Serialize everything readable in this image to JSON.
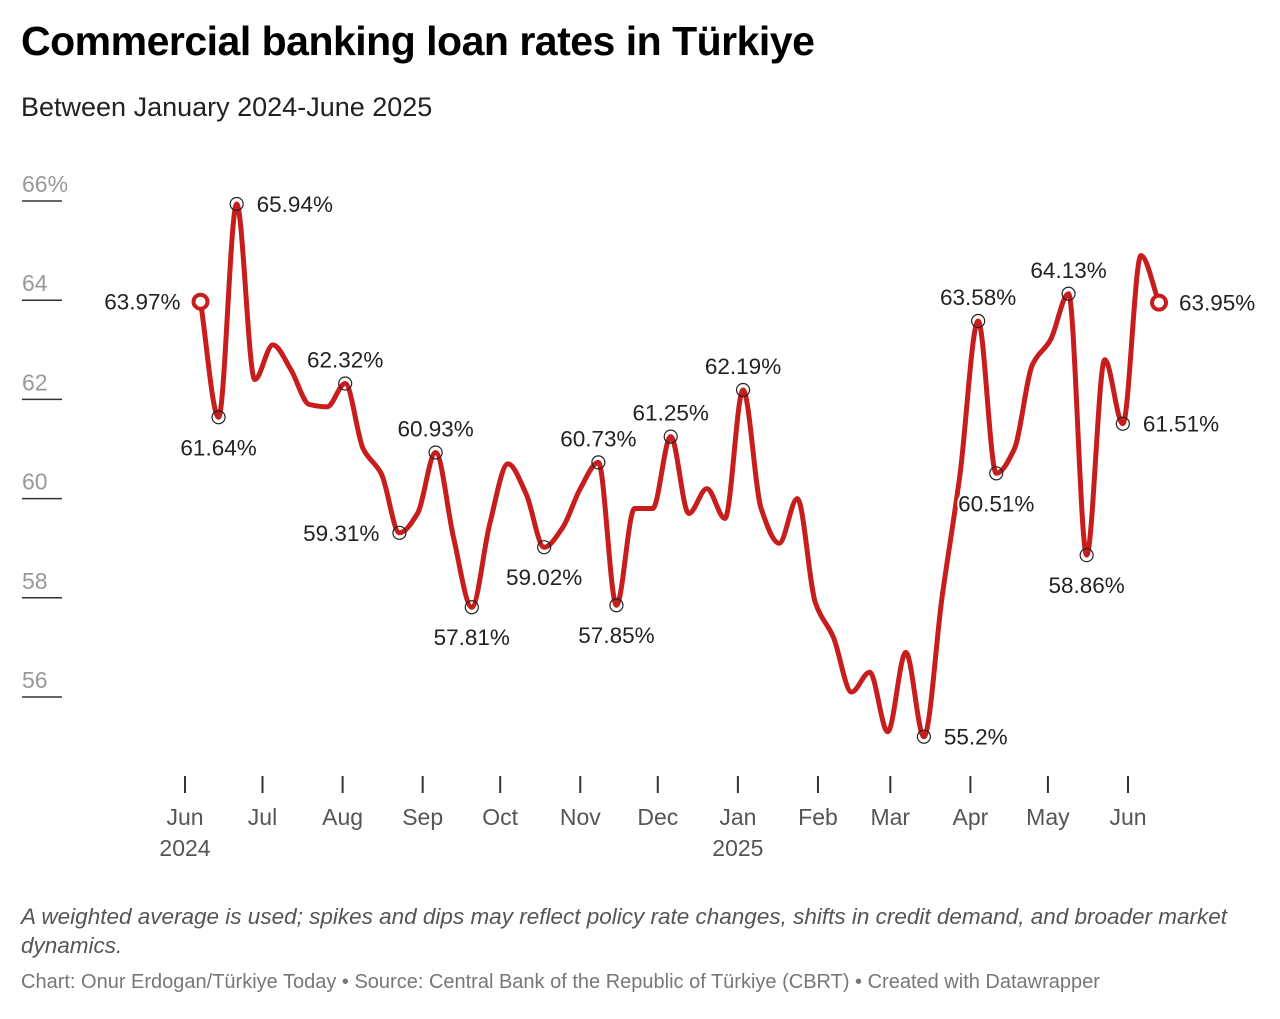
{
  "header": {
    "title": "Commercial banking loan rates in Türkiye",
    "subtitle": "Between January 2024-June 2025"
  },
  "footer": {
    "notes": "A weighted average is used; spikes and dips may reflect policy rate changes, shifts in credit demand, and broader market dynamics.",
    "credit": "Chart: Onur Erdogan/Türkiye Today • Source: Central Bank of the Republic of Türkiye (CBRT) • Created with Datawrapper"
  },
  "chart_data": {
    "type": "line",
    "title": "Commercial banking loan rates in Türkiye",
    "subtitle": "Between January 2024-June 2025",
    "ylim": [
      54.5,
      67
    ],
    "y_ticks": [
      56,
      58,
      60,
      62,
      64,
      66
    ],
    "y_tick_labels": [
      "56",
      "58",
      "60",
      "62",
      "64",
      "66%"
    ],
    "y_grid": false,
    "x_ticks": [
      {
        "date": "2024-06-01",
        "label": "Jun",
        "sublabel": "2024"
      },
      {
        "date": "2024-07-01",
        "label": "Jul",
        "sublabel": ""
      },
      {
        "date": "2024-08-01",
        "label": "Aug",
        "sublabel": ""
      },
      {
        "date": "2024-09-01",
        "label": "Sep",
        "sublabel": ""
      },
      {
        "date": "2024-10-01",
        "label": "Oct",
        "sublabel": ""
      },
      {
        "date": "2024-11-01",
        "label": "Nov",
        "sublabel": ""
      },
      {
        "date": "2024-12-01",
        "label": "Dec",
        "sublabel": ""
      },
      {
        "date": "2025-01-01",
        "label": "Jan",
        "sublabel": "2025"
      },
      {
        "date": "2025-02-01",
        "label": "Feb",
        "sublabel": ""
      },
      {
        "date": "2025-03-01",
        "label": "Mar",
        "sublabel": ""
      },
      {
        "date": "2025-04-01",
        "label": "Apr",
        "sublabel": ""
      },
      {
        "date": "2025-05-01",
        "label": "May",
        "sublabel": ""
      },
      {
        "date": "2025-06-01",
        "label": "Jun",
        "sublabel": ""
      }
    ],
    "line_color": "#c71e1d",
    "series": [
      {
        "points": [
          {
            "x": "2024-06-07",
            "y": 63.97
          },
          {
            "x": "2024-06-14",
            "y": 61.64
          },
          {
            "x": "2024-06-21",
            "y": 65.94
          },
          {
            "x": "2024-06-28",
            "y": 62.4
          },
          {
            "x": "2024-07-05",
            "y": 63.1
          },
          {
            "x": "2024-07-12",
            "y": 62.6
          },
          {
            "x": "2024-07-19",
            "y": 61.9
          },
          {
            "x": "2024-07-26",
            "y": 61.85
          },
          {
            "x": "2024-08-02",
            "y": 62.32
          },
          {
            "x": "2024-08-09",
            "y": 61.0
          },
          {
            "x": "2024-08-16",
            "y": 60.5
          },
          {
            "x": "2024-08-23",
            "y": 59.31
          },
          {
            "x": "2024-08-30",
            "y": 59.7
          },
          {
            "x": "2024-09-06",
            "y": 60.93
          },
          {
            "x": "2024-09-13",
            "y": 59.2
          },
          {
            "x": "2024-09-20",
            "y": 57.81
          },
          {
            "x": "2024-09-27",
            "y": 59.5
          },
          {
            "x": "2024-10-04",
            "y": 60.7
          },
          {
            "x": "2024-10-11",
            "y": 60.1
          },
          {
            "x": "2024-10-18",
            "y": 59.02
          },
          {
            "x": "2024-10-25",
            "y": 59.4
          },
          {
            "x": "2024-11-01",
            "y": 60.2
          },
          {
            "x": "2024-11-08",
            "y": 60.73
          },
          {
            "x": "2024-11-15",
            "y": 57.85
          },
          {
            "x": "2024-11-22",
            "y": 59.8
          },
          {
            "x": "2024-11-29",
            "y": 59.8
          },
          {
            "x": "2024-12-06",
            "y": 61.25
          },
          {
            "x": "2024-12-13",
            "y": 59.7
          },
          {
            "x": "2024-12-20",
            "y": 60.2
          },
          {
            "x": "2024-12-27",
            "y": 59.6
          },
          {
            "x": "2025-01-03",
            "y": 62.19
          },
          {
            "x": "2025-01-10",
            "y": 59.8
          },
          {
            "x": "2025-01-17",
            "y": 59.1
          },
          {
            "x": "2025-01-24",
            "y": 60.0
          },
          {
            "x": "2025-01-31",
            "y": 57.9
          },
          {
            "x": "2025-02-07",
            "y": 57.2
          },
          {
            "x": "2025-02-14",
            "y": 56.1
          },
          {
            "x": "2025-02-21",
            "y": 56.5
          },
          {
            "x": "2025-02-28",
            "y": 55.3
          },
          {
            "x": "2025-03-07",
            "y": 56.9
          },
          {
            "x": "2025-03-14",
            "y": 55.2
          },
          {
            "x": "2025-03-21",
            "y": 58.0
          },
          {
            "x": "2025-03-28",
            "y": 60.5
          },
          {
            "x": "2025-04-04",
            "y": 63.58
          },
          {
            "x": "2025-04-11",
            "y": 60.51
          },
          {
            "x": "2025-04-18",
            "y": 61.0
          },
          {
            "x": "2025-04-25",
            "y": 62.7
          },
          {
            "x": "2025-05-02",
            "y": 63.2
          },
          {
            "x": "2025-05-09",
            "y": 64.13
          },
          {
            "x": "2025-05-16",
            "y": 58.86
          },
          {
            "x": "2025-05-23",
            "y": 62.8
          },
          {
            "x": "2025-05-30",
            "y": 61.51
          },
          {
            "x": "2025-06-06",
            "y": 64.9
          },
          {
            "x": "2025-06-13",
            "y": 63.95
          }
        ]
      }
    ],
    "annotations": [
      {
        "x": "2024-06-07",
        "y": 63.97,
        "text": "63.97%",
        "anchor": "left",
        "endpoint": true
      },
      {
        "x": "2024-06-14",
        "y": 61.64,
        "text": "61.64%",
        "anchor": "below"
      },
      {
        "x": "2024-06-21",
        "y": 65.94,
        "text": "65.94%",
        "anchor": "right"
      },
      {
        "x": "2024-08-02",
        "y": 62.32,
        "text": "62.32%",
        "anchor": "above"
      },
      {
        "x": "2024-08-23",
        "y": 59.31,
        "text": "59.31%",
        "anchor": "left"
      },
      {
        "x": "2024-09-06",
        "y": 60.93,
        "text": "60.93%",
        "anchor": "above"
      },
      {
        "x": "2024-09-20",
        "y": 57.81,
        "text": "57.81%",
        "anchor": "below"
      },
      {
        "x": "2024-10-18",
        "y": 59.02,
        "text": "59.02%",
        "anchor": "below"
      },
      {
        "x": "2024-11-08",
        "y": 60.73,
        "text": "60.73%",
        "anchor": "above"
      },
      {
        "x": "2024-11-15",
        "y": 57.85,
        "text": "57.85%",
        "anchor": "below"
      },
      {
        "x": "2024-12-06",
        "y": 61.25,
        "text": "61.25%",
        "anchor": "above"
      },
      {
        "x": "2025-01-03",
        "y": 62.19,
        "text": "62.19%",
        "anchor": "above"
      },
      {
        "x": "2025-03-14",
        "y": 55.2,
        "text": "55.2%",
        "anchor": "right"
      },
      {
        "x": "2025-04-04",
        "y": 63.58,
        "text": "63.58%",
        "anchor": "above"
      },
      {
        "x": "2025-04-11",
        "y": 60.51,
        "text": "60.51%",
        "anchor": "below"
      },
      {
        "x": "2025-05-09",
        "y": 64.13,
        "text": "64.13%",
        "anchor": "above"
      },
      {
        "x": "2025-05-16",
        "y": 58.86,
        "text": "58.86%",
        "anchor": "below"
      },
      {
        "x": "2025-05-30",
        "y": 61.51,
        "text": "61.51%",
        "anchor": "right"
      },
      {
        "x": "2025-06-13",
        "y": 63.95,
        "text": "63.95%",
        "anchor": "right",
        "endpoint": true
      }
    ]
  }
}
